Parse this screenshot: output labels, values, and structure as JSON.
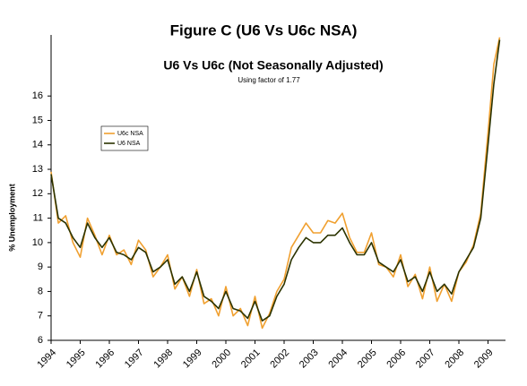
{
  "chart_data": {
    "type": "line",
    "title": "Figure C (U6 Vs U6c NSA)",
    "subtitle": "U6 Vs U6c (Not Seasonally Adjusted)",
    "annotation": "Using factor of 1.77",
    "y_label": "% Unemployment",
    "x": [
      1994,
      1994.25,
      1994.5,
      1994.75,
      1995,
      1995.25,
      1995.5,
      1995.75,
      1996,
      1996.25,
      1996.5,
      1996.75,
      1997,
      1997.25,
      1997.5,
      1997.75,
      1998,
      1998.25,
      1998.5,
      1998.75,
      1999,
      1999.25,
      1999.5,
      1999.75,
      2000,
      2000.25,
      2000.5,
      2000.75,
      2001,
      2001.25,
      2001.5,
      2001.75,
      2002,
      2002.25,
      2002.5,
      2002.75,
      2003,
      2003.25,
      2003.5,
      2003.75,
      2004,
      2004.25,
      2004.5,
      2004.75,
      2005,
      2005.25,
      2005.5,
      2005.75,
      2006,
      2006.25,
      2006.5,
      2006.75,
      2007,
      2007.25,
      2007.5,
      2007.75,
      2008,
      2008.25,
      2008.5,
      2008.75,
      2009,
      2009.2,
      2009.4
    ],
    "series": [
      {
        "name": "U6c NSA",
        "color": "#f0a030",
        "values": [
          12.9,
          10.8,
          11.1,
          10.0,
          9.4,
          11.0,
          10.3,
          9.5,
          10.3,
          9.5,
          9.7,
          9.1,
          10.1,
          9.7,
          8.6,
          9.0,
          9.5,
          8.1,
          8.6,
          7.8,
          8.9,
          7.5,
          7.7,
          7.0,
          8.2,
          7.0,
          7.3,
          6.6,
          7.8,
          6.5,
          7.1,
          8.0,
          8.5,
          9.8,
          10.3,
          10.8,
          10.4,
          10.4,
          10.9,
          10.8,
          11.2,
          10.2,
          9.6,
          9.6,
          10.4,
          9.1,
          9.0,
          8.6,
          9.5,
          8.2,
          8.7,
          7.7,
          9.0,
          7.6,
          8.3,
          7.6,
          8.8,
          9.2,
          9.9,
          11.2,
          14.5,
          17.3,
          18.4
        ]
      },
      {
        "name": "U6 NSA",
        "color": "#2b3300",
        "values": [
          12.8,
          11.0,
          10.8,
          10.2,
          9.8,
          10.8,
          10.2,
          9.8,
          10.2,
          9.6,
          9.5,
          9.3,
          9.8,
          9.6,
          8.8,
          9.0,
          9.3,
          8.3,
          8.6,
          8.0,
          8.8,
          7.8,
          7.6,
          7.3,
          8.0,
          7.3,
          7.2,
          6.9,
          7.6,
          6.8,
          7.0,
          7.8,
          8.3,
          9.3,
          9.8,
          10.2,
          10.0,
          10.0,
          10.3,
          10.3,
          10.6,
          10.0,
          9.5,
          9.5,
          10.0,
          9.2,
          9.0,
          8.8,
          9.3,
          8.4,
          8.6,
          8.0,
          8.8,
          8.0,
          8.3,
          7.9,
          8.8,
          9.3,
          9.8,
          11.0,
          14.0,
          16.5,
          18.3
        ]
      }
    ],
    "xlim": [
      1994,
      2009.6
    ],
    "xticks": [
      1994,
      1995,
      1996,
      1997,
      1998,
      1999,
      2000,
      2001,
      2002,
      2003,
      2004,
      2005,
      2006,
      2007,
      2008,
      2009
    ],
    "ylim": [
      6,
      18.5
    ],
    "yticks": [
      6,
      7,
      8,
      9,
      10,
      11,
      12,
      13,
      14,
      15,
      16
    ],
    "grid": false,
    "legend": "upper left"
  }
}
